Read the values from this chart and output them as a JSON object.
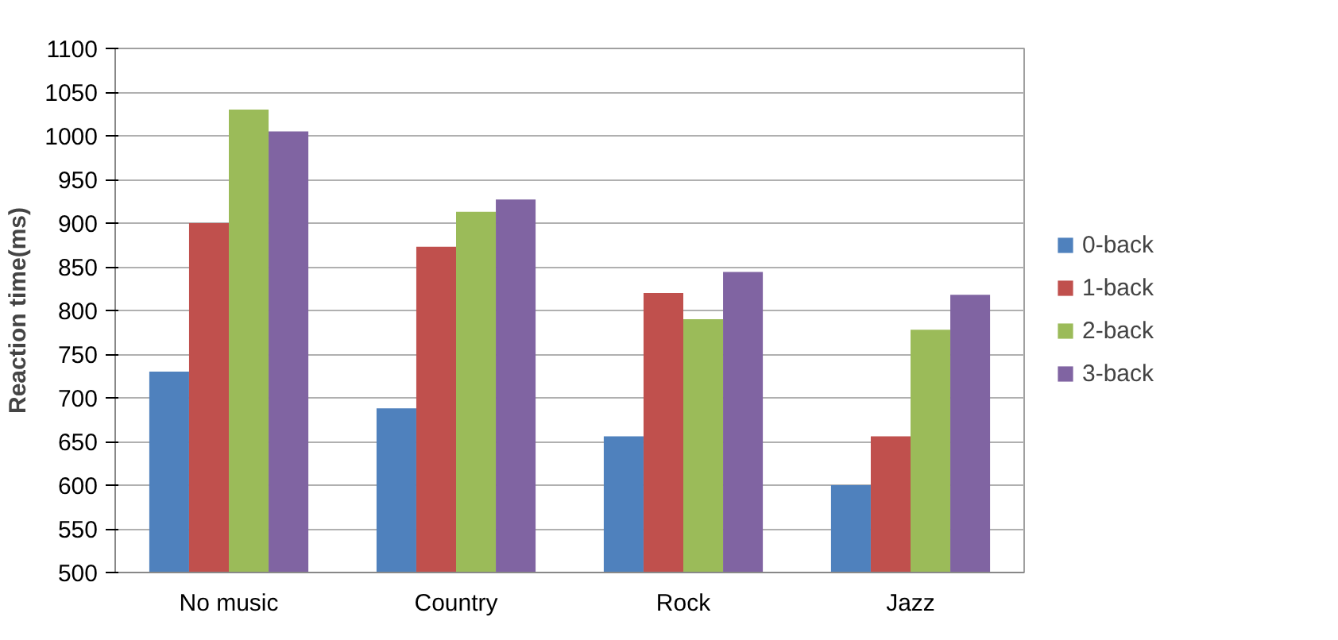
{
  "chart_data": {
    "type": "bar",
    "ylabel": "Reaction time(ms)",
    "categories": [
      "No music",
      "Country",
      "Rock",
      "Jazz"
    ],
    "series": [
      {
        "name": "0-back",
        "color": "#4f81bd",
        "values": [
          730,
          688,
          656,
          600
        ]
      },
      {
        "name": "1-back",
        "color": "#c0504d",
        "values": [
          900,
          873,
          820,
          656
        ]
      },
      {
        "name": "2-back",
        "color": "#9bbb59",
        "values": [
          1030,
          913,
          790,
          778
        ]
      },
      {
        "name": "3-back",
        "color": "#8064a2",
        "values": [
          1005,
          927,
          844,
          818
        ]
      }
    ],
    "ylim": [
      500,
      1100
    ],
    "yticks": [
      500,
      550,
      600,
      650,
      700,
      750,
      800,
      850,
      900,
      950,
      1000,
      1050,
      1100
    ],
    "grid": "y",
    "legend": "right"
  }
}
